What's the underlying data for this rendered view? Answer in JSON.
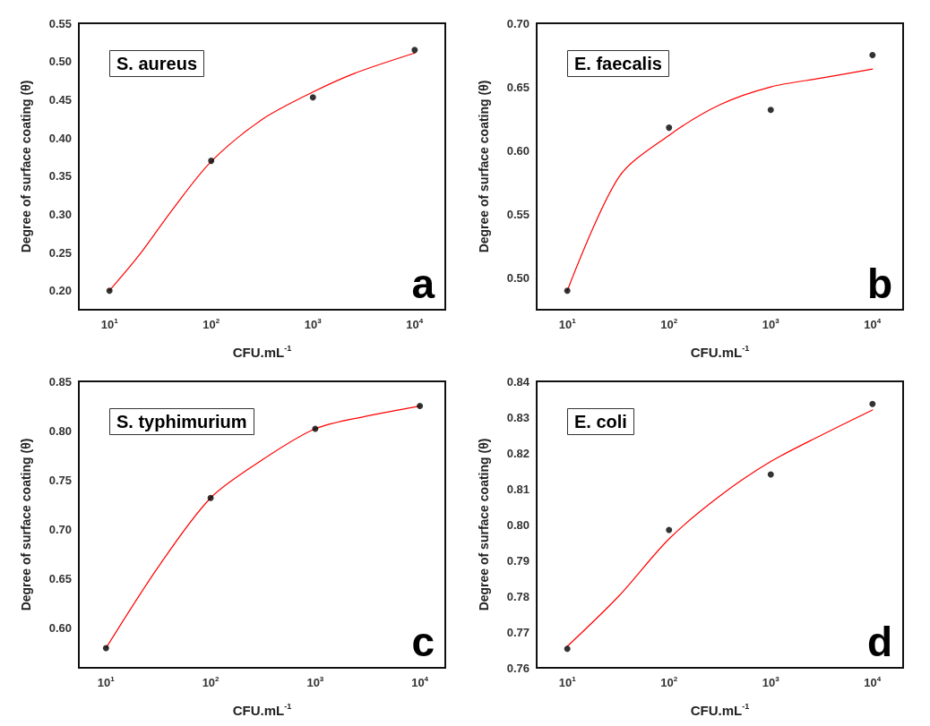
{
  "chart_data": [
    {
      "type": "scatter",
      "title": "S. aureus",
      "xlabel": "CFU.mL$^{-1}$",
      "ylabel": "Degree of surface coating (θ)",
      "annotations": [
        "a"
      ],
      "log": "x",
      "grid": false,
      "x": [
        10,
        100,
        1000,
        10000
      ],
      "xlim": [
        5,
        20000
      ],
      "xticks": [
        {
          "value": 10,
          "label": "10$^{1}$"
        },
        {
          "value": 100,
          "label": "10$^{2}$"
        },
        {
          "value": 1000,
          "label": "10$^{3}$"
        },
        {
          "value": 10000,
          "label": "10$^{4}$"
        }
      ],
      "ylim": [
        0.175,
        0.55
      ],
      "yticks": [
        {
          "value": 0.2,
          "label": "0.20"
        },
        {
          "value": 0.25,
          "label": "0.25"
        },
        {
          "value": 0.3,
          "label": "0.30"
        },
        {
          "value": 0.35,
          "label": "0.35"
        },
        {
          "value": 0.4,
          "label": "0.40"
        },
        {
          "value": 0.45,
          "label": "0.45"
        },
        {
          "value": 0.5,
          "label": "0.50"
        },
        {
          "value": 0.55,
          "label": "0.55"
        }
      ],
      "series": [
        {
          "color": "#000000",
          "marker": "circle",
          "values": [
            0.2,
            0.37,
            0.453,
            0.515
          ]
        },
        {
          "type": "line",
          "marker": "none",
          "color": "#ff0000",
          "x": [
            10,
            20,
            40,
            100,
            316,
            1000,
            2512,
            10000
          ],
          "values": [
            0.2,
            0.248,
            0.303,
            0.369,
            0.424,
            0.46,
            0.484,
            0.511
          ]
        }
      ]
    },
    {
      "type": "scatter",
      "title": "E. faecalis",
      "xlabel": "CFU.mL$^{-1}$",
      "ylabel": "Degree of surface coating (θ)",
      "annotations": [
        "b"
      ],
      "log": "x",
      "grid": false,
      "x": [
        10,
        100,
        1000,
        10000
      ],
      "xlim": [
        5,
        20000
      ],
      "xticks": [
        {
          "value": 10,
          "label": "10$^{1}$"
        },
        {
          "value": 100,
          "label": "10$^{2}$"
        },
        {
          "value": 1000,
          "label": "10$^{3}$"
        },
        {
          "value": 10000,
          "label": "10$^{4}$"
        }
      ],
      "ylim": [
        0.475,
        0.7
      ],
      "yticks": [
        {
          "value": 0.5,
          "label": "0.50"
        },
        {
          "value": 0.55,
          "label": "0.55"
        },
        {
          "value": 0.6,
          "label": "0.60"
        },
        {
          "value": 0.65,
          "label": "0.65"
        },
        {
          "value": 0.7,
          "label": "0.70"
        }
      ],
      "series": [
        {
          "color": "#000000",
          "marker": "circle",
          "values": [
            0.49,
            0.618,
            0.632,
            0.675
          ]
        },
        {
          "type": "line",
          "marker": "none",
          "color": "#ff0000",
          "x": [
            10,
            32,
            100,
            316,
            1000,
            3162,
            10000
          ],
          "values": [
            0.49,
            0.579,
            0.612,
            0.636,
            0.65,
            0.657,
            0.664
          ]
        }
      ]
    },
    {
      "type": "scatter",
      "title": "S. typhimurium",
      "xlabel": "CFU.mL$^{-1}$",
      "ylabel": "Degree of surface coating (θ)",
      "annotations": [
        "c"
      ],
      "log": "x",
      "grid": false,
      "x": [
        10,
        100,
        1000,
        10000
      ],
      "xlim": [
        5.5,
        17500
      ],
      "xticks": [
        {
          "value": 10,
          "label": "10$^{1}$"
        },
        {
          "value": 100,
          "label": "10$^{2}$"
        },
        {
          "value": 1000,
          "label": "10$^{3}$"
        },
        {
          "value": 10000,
          "label": "10$^{4}$"
        }
      ],
      "ylim": [
        0.56,
        0.85
      ],
      "yticks": [
        {
          "value": 0.6,
          "label": "0.60"
        },
        {
          "value": 0.65,
          "label": "0.65"
        },
        {
          "value": 0.7,
          "label": "0.70"
        },
        {
          "value": 0.75,
          "label": "0.75"
        },
        {
          "value": 0.8,
          "label": "0.80"
        },
        {
          "value": 0.85,
          "label": "0.85"
        }
      ],
      "series": [
        {
          "color": "#000000",
          "marker": "circle",
          "values": [
            0.58,
            0.732,
            0.802,
            0.825
          ]
        },
        {
          "type": "line",
          "marker": "none",
          "color": "#ff0000",
          "x": [
            10,
            32,
            100,
            316,
            1000,
            3162,
            10000
          ],
          "values": [
            0.58,
            0.663,
            0.732,
            0.771,
            0.802,
            0.815,
            0.825
          ]
        }
      ]
    },
    {
      "type": "scatter",
      "title": "E. coli",
      "xlabel": "CFU.mL$^{-1}$",
      "ylabel": "Degree of surface coating (θ)",
      "annotations": [
        "d"
      ],
      "log": "x",
      "grid": false,
      "x": [
        10,
        100,
        1000,
        10000
      ],
      "xlim": [
        5,
        20000
      ],
      "xticks": [
        {
          "value": 10,
          "label": "10$^{1}$"
        },
        {
          "value": 100,
          "label": "10$^{2}$"
        },
        {
          "value": 1000,
          "label": "10$^{3}$"
        },
        {
          "value": 10000,
          "label": "10$^{4}$"
        }
      ],
      "ylim": [
        0.76,
        0.84
      ],
      "yticks": [
        0.76,
        0.77,
        0.78,
        0.79,
        {
          "value": 0.8,
          "label": "0.80"
        },
        0.81,
        0.82,
        0.83,
        0.84
      ],
      "series": [
        {
          "color": "#000000",
          "marker": "circle",
          "values": [
            0.7653,
            0.7985,
            0.814,
            0.8337
          ]
        },
        {
          "type": "line",
          "marker": "none",
          "color": "#ff0000",
          "x": [
            10,
            32,
            100,
            316,
            1000,
            3162,
            10000
          ],
          "values": [
            0.766,
            0.78,
            0.796,
            0.808,
            0.8176,
            0.825,
            0.832
          ]
        }
      ]
    }
  ]
}
